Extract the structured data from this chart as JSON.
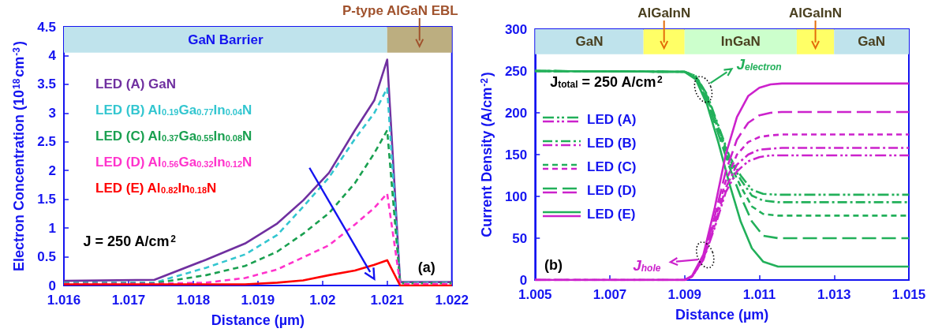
{
  "chart_data": [
    {
      "type": "line",
      "xlabel": "Distance (µm)",
      "ylabel": "Electron Concentration (10$^{18}$cm$^{-3}$)",
      "xlim": [
        1.016,
        1.022
      ],
      "xticks": [
        1.016,
        1.017,
        1.018,
        1.019,
        1.02,
        1.021,
        1.022
      ],
      "ylim": [
        0,
        4.5
      ],
      "yticks": [
        0,
        0.5,
        1,
        1.5,
        2,
        2.5,
        3,
        3.5,
        4,
        4.5
      ],
      "legend": "top left",
      "marker": "none",
      "annotations": [
        "J = 250 A/cm$^{2}$",
        "(a)"
      ],
      "bands": [
        {
          "axis": "x",
          "from": 1.016,
          "to": 1.021,
          "label": "GaN Barrier",
          "color": "#bfe3ec"
        },
        {
          "axis": "x",
          "from": 1.021,
          "to": 1.022,
          "label": "P-type AlGaN EBL",
          "color": "#bcae80"
        }
      ],
      "series": [
        {
          "name": "LED (A) GaN",
          "color": "#7030a0",
          "line_style": "solid",
          "x": [
            1.016,
            1.0174,
            1.0182,
            1.0188,
            1.0193,
            1.0197,
            1.0201,
            1.0205,
            1.0208,
            1.021,
            1.0212,
            1.022
          ],
          "values": [
            0.08,
            0.1,
            0.45,
            0.73,
            1.08,
            1.48,
            1.96,
            2.7,
            3.22,
            3.93,
            0.06,
            0.06
          ]
        },
        {
          "name": "LED (B) Al$_{0.19}$Ga$_{0.77}$In$_{0.04}$N",
          "color": "#33c6d0",
          "line_style": "dashed",
          "x": [
            1.016,
            1.0174,
            1.0182,
            1.0188,
            1.0193,
            1.0197,
            1.0201,
            1.0205,
            1.0208,
            1.021,
            1.0212,
            1.022
          ],
          "values": [
            0.05,
            0.05,
            0.31,
            0.54,
            0.88,
            1.37,
            1.88,
            2.55,
            3.0,
            3.43,
            0.05,
            0.05
          ]
        },
        {
          "name": "LED (C) Al$_{0.37}$Ga$_{0.55}$In$_{0.08}$N",
          "color": "#1aa050",
          "line_style": "dashed",
          "x": [
            1.016,
            1.0174,
            1.0182,
            1.0188,
            1.0193,
            1.0197,
            1.0201,
            1.0205,
            1.0208,
            1.021,
            1.0212,
            1.022
          ],
          "values": [
            0.04,
            0.04,
            0.18,
            0.34,
            0.59,
            0.9,
            1.26,
            1.78,
            2.3,
            2.7,
            0.04,
            0.04
          ]
        },
        {
          "name": "LED (D) Al$_{0.56}$Ga$_{0.32}$In$_{0.12}$N",
          "color": "#ff33cc",
          "line_style": "dashed",
          "x": [
            1.016,
            1.0174,
            1.0182,
            1.0188,
            1.0193,
            1.0197,
            1.0201,
            1.0205,
            1.0208,
            1.021,
            1.0212,
            1.022
          ],
          "values": [
            0.03,
            0.03,
            0.05,
            0.13,
            0.28,
            0.49,
            0.7,
            1.06,
            1.35,
            1.6,
            0.03,
            0.03
          ]
        },
        {
          "name": "LED (E) Al$_{0.82}$In$_{0.18}$N",
          "color": "#ff0000",
          "line_style": "solid",
          "x": [
            1.016,
            1.0174,
            1.0182,
            1.0188,
            1.0193,
            1.0197,
            1.0201,
            1.0205,
            1.0208,
            1.021,
            1.0212,
            1.022
          ],
          "values": [
            0.02,
            0.02,
            0.02,
            0.02,
            0.05,
            0.09,
            0.18,
            0.26,
            0.36,
            0.44,
            0,
            0
          ]
        }
      ]
    },
    {
      "type": "line",
      "xlabel": "Distance (µm)",
      "ylabel": "Current Density (A/cm$^{-2}$)",
      "xlim": [
        1.005,
        1.015
      ],
      "xticks": [
        1.005,
        1.007,
        1.009,
        1.011,
        1.013,
        1.015
      ],
      "ylim": [
        0,
        300
      ],
      "yticks": [
        0,
        50,
        100,
        150,
        200,
        250,
        300
      ],
      "legend": "left",
      "marker": "none",
      "annotations": [
        "J$_{total}$ = 250 A/cm$^{2}$",
        "(b)",
        {
          "text": "J$_{electron}$",
          "x": 1.0095,
          "y": 228
        },
        {
          "text": "J$_{hole}$",
          "x": 1.00955,
          "y": 30
        }
      ],
      "bands": [
        {
          "axis": "x",
          "from": 1.005,
          "to": 1.0079,
          "label": "GaN",
          "color": "#bfe3ec"
        },
        {
          "axis": "x",
          "from": 1.0079,
          "to": 1.009,
          "label": "AlGaInN",
          "color": "#ffff66"
        },
        {
          "axis": "x",
          "from": 1.009,
          "to": 1.012,
          "label": "InGaN",
          "color": "#ccffcc"
        },
        {
          "axis": "x",
          "from": 1.012,
          "to": 1.013,
          "label": "AlGaInN",
          "color": "#ffff66"
        },
        {
          "axis": "x",
          "from": 1.013,
          "to": 1.015,
          "label": "GaN",
          "color": "#bfe3ec"
        }
      ],
      "series": [
        {
          "name": "LED (A)",
          "color": "#22b05a",
          "line_style": "dashdotdot",
          "x": [
            1.005,
            1.009,
            1.0093,
            1.0096,
            1.0099,
            1.0102,
            1.0105,
            1.0108,
            1.0111,
            1.0115,
            1.015
          ],
          "values": [
            250,
            249,
            244,
            222,
            185,
            148,
            125,
            108,
            103,
            102,
            102
          ]
        },
        {
          "name": "LED (B)",
          "color": "#22b05a",
          "line_style": "dashdot",
          "x": [
            1.005,
            1.009,
            1.0093,
            1.0096,
            1.0099,
            1.0102,
            1.0105,
            1.0108,
            1.0111,
            1.0115,
            1.015
          ],
          "values": [
            250,
            249,
            244,
            220,
            183,
            145,
            120,
            101,
            95,
            93,
            93
          ]
        },
        {
          "name": "LED (C)",
          "color": "#22b05a",
          "line_style": "dashed",
          "x": [
            1.005,
            1.009,
            1.0093,
            1.0096,
            1.0099,
            1.0102,
            1.0105,
            1.0108,
            1.0111,
            1.0115,
            1.015
          ],
          "values": [
            250,
            249,
            243,
            218,
            180,
            140,
            112,
            88,
            79,
            77,
            77
          ]
        },
        {
          "name": "LED (D)",
          "color": "#22b05a",
          "line_style": "longdash",
          "x": [
            1.005,
            1.009,
            1.0093,
            1.0096,
            1.0099,
            1.0102,
            1.0105,
            1.0108,
            1.0111,
            1.0115,
            1.015
          ],
          "values": [
            250,
            249,
            242,
            215,
            175,
            135,
            100,
            70,
            53,
            50,
            50
          ]
        },
        {
          "name": "LED (E)",
          "color": "#22b05a",
          "line_style": "solid",
          "x": [
            1.005,
            1.009,
            1.0093,
            1.0096,
            1.0099,
            1.0102,
            1.0105,
            1.0108,
            1.0111,
            1.0115,
            1.015
          ],
          "values": [
            250,
            249,
            240,
            210,
            165,
            115,
            70,
            38,
            22,
            16,
            16
          ]
        },
        {
          "color": "#cc22cc",
          "line_style": "dashdotdot",
          "x": [
            1.005,
            1.009,
            1.0092,
            1.0095,
            1.0098,
            1.0101,
            1.0104,
            1.0107,
            1.011,
            1.0113,
            1.0116,
            1.015
          ],
          "values": [
            0,
            0,
            4,
            24,
            62,
            105,
            130,
            142,
            147,
            149,
            149,
            149
          ]
        },
        {
          "color": "#cc22cc",
          "line_style": "dashdot",
          "x": [
            1.005,
            1.009,
            1.0092,
            1.0095,
            1.0098,
            1.0101,
            1.0104,
            1.0107,
            1.011,
            1.0113,
            1.0116,
            1.015
          ],
          "values": [
            0,
            0,
            4,
            25,
            65,
            110,
            138,
            150,
            156,
            157,
            158,
            158
          ]
        },
        {
          "color": "#cc22cc",
          "line_style": "dashed",
          "x": [
            1.005,
            1.009,
            1.0092,
            1.0095,
            1.0098,
            1.0101,
            1.0104,
            1.0107,
            1.011,
            1.0113,
            1.0116,
            1.015
          ],
          "values": [
            0,
            0,
            4,
            27,
            70,
            118,
            150,
            165,
            171,
            173,
            174,
            174
          ]
        },
        {
          "color": "#cc22cc",
          "line_style": "longdash",
          "x": [
            1.005,
            1.009,
            1.0092,
            1.0095,
            1.0098,
            1.0101,
            1.0104,
            1.0107,
            1.011,
            1.0113,
            1.0116,
            1.015
          ],
          "values": [
            0,
            0,
            4,
            28,
            75,
            130,
            168,
            188,
            197,
            200,
            201,
            201
          ]
        },
        {
          "color": "#cc22cc",
          "line_style": "solid",
          "x": [
            1.005,
            1.009,
            1.0092,
            1.0095,
            1.0098,
            1.0101,
            1.0104,
            1.0107,
            1.011,
            1.0113,
            1.0116,
            1.015
          ],
          "values": [
            0,
            0,
            5,
            30,
            85,
            150,
            195,
            220,
            230,
            234,
            235,
            235
          ]
        }
      ]
    }
  ]
}
